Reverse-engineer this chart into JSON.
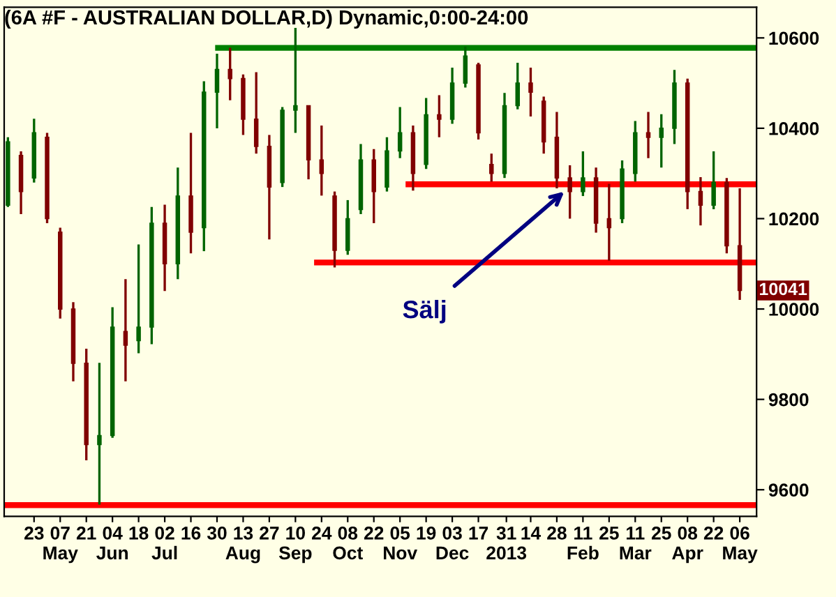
{
  "chart_data": {
    "type": "candlestick",
    "title": "(6A #F - AUSTRALIAN DOLLAR,D) Dynamic,0:00-24:00",
    "x": [
      "2012-04-09",
      "2012-04-16",
      "2012-04-23",
      "2012-04-30",
      "2012-05-07",
      "2012-05-14",
      "2012-05-21",
      "2012-05-28",
      "2012-06-04",
      "2012-06-11",
      "2012-06-18",
      "2012-06-25",
      "2012-07-02",
      "2012-07-09",
      "2012-07-16",
      "2012-07-23",
      "2012-07-30",
      "2012-08-06",
      "2012-08-13",
      "2012-08-20",
      "2012-08-27",
      "2012-09-03",
      "2012-09-10",
      "2012-09-17",
      "2012-09-24",
      "2012-10-01",
      "2012-10-08",
      "2012-10-15",
      "2012-10-22",
      "2012-10-29",
      "2012-11-05",
      "2012-11-12",
      "2012-11-19",
      "2012-11-26",
      "2012-12-03",
      "2012-12-10",
      "2012-12-17",
      "2012-12-24",
      "2012-12-31",
      "2013-01-07",
      "2013-01-14",
      "2013-01-21",
      "2013-01-28",
      "2013-02-04",
      "2013-02-11",
      "2013-02-18",
      "2013-02-25",
      "2013-03-04",
      "2013-03-11",
      "2013-03-18",
      "2013-03-25",
      "2013-04-01",
      "2013-04-08",
      "2013-04-15",
      "2013-04-22",
      "2013-04-29",
      "2013-05-06"
    ],
    "ohlc": [
      [
        10230,
        10380,
        10226,
        10370
      ],
      [
        10340,
        10349,
        10210,
        10260
      ],
      [
        10290,
        10421,
        10280,
        10390
      ],
      [
        10380,
        10390,
        10190,
        10200
      ],
      [
        10170,
        10180,
        9979,
        10000
      ],
      [
        10000,
        10015,
        9840,
        9880
      ],
      [
        9880,
        9912,
        9665,
        9700
      ],
      [
        9700,
        9881,
        9567,
        9720
      ],
      [
        9720,
        10004,
        9715,
        9960
      ],
      [
        9950,
        10066,
        9840,
        9920
      ],
      [
        9930,
        10143,
        9902,
        9960
      ],
      [
        9960,
        10226,
        9922,
        10190
      ],
      [
        10190,
        10231,
        10040,
        10100
      ],
      [
        10100,
        10313,
        10066,
        10250
      ],
      [
        10250,
        10390,
        10123,
        10170
      ],
      [
        10180,
        10504,
        10128,
        10480
      ],
      [
        10480,
        10565,
        10400,
        10530
      ],
      [
        10530,
        10578,
        10462,
        10510
      ],
      [
        10510,
        10519,
        10385,
        10420
      ],
      [
        10420,
        10524,
        10344,
        10360
      ],
      [
        10360,
        10385,
        10154,
        10270
      ],
      [
        10280,
        10447,
        10270,
        10440
      ],
      [
        10440,
        10622,
        10390,
        10450
      ],
      [
        10450,
        10450,
        10287,
        10330
      ],
      [
        10330,
        10406,
        10251,
        10300
      ],
      [
        10250,
        10260,
        10092,
        10130
      ],
      [
        10130,
        10241,
        10120,
        10200
      ],
      [
        10220,
        10365,
        10210,
        10330
      ],
      [
        10330,
        10354,
        10190,
        10260
      ],
      [
        10270,
        10380,
        10260,
        10350
      ],
      [
        10350,
        10447,
        10334,
        10390
      ],
      [
        10390,
        10406,
        10262,
        10300
      ],
      [
        10320,
        10467,
        10310,
        10430
      ],
      [
        10430,
        10473,
        10380,
        10420
      ],
      [
        10420,
        10534,
        10410,
        10500
      ],
      [
        10500,
        10581,
        10490,
        10560
      ],
      [
        10540,
        10545,
        10375,
        10390
      ],
      [
        10320,
        10344,
        10282,
        10300
      ],
      [
        10300,
        10478,
        10290,
        10450
      ],
      [
        10450,
        10545,
        10442,
        10500
      ],
      [
        10500,
        10534,
        10426,
        10480
      ],
      [
        10460,
        10470,
        10344,
        10370
      ],
      [
        10380,
        10436,
        10267,
        10290
      ],
      [
        10290,
        10318,
        10200,
        10260
      ],
      [
        10260,
        10349,
        10250,
        10290
      ],
      [
        10290,
        10313,
        10169,
        10190
      ],
      [
        10200,
        10277,
        10107,
        10180
      ],
      [
        10200,
        10329,
        10190,
        10310
      ],
      [
        10300,
        10416,
        10282,
        10390
      ],
      [
        10390,
        10436,
        10334,
        10380
      ],
      [
        10380,
        10431,
        10313,
        10400
      ],
      [
        10400,
        10529,
        10365,
        10500
      ],
      [
        10500,
        10510,
        10221,
        10260
      ],
      [
        10260,
        10292,
        10185,
        10230
      ],
      [
        10230,
        10349,
        10221,
        10280
      ],
      [
        10280,
        10290,
        10123,
        10140
      ],
      [
        10140,
        10267,
        10020,
        10041
      ]
    ],
    "colors": [
      "#006400",
      "#800000",
      "#006400",
      "#800000",
      "#800000",
      "#800000",
      "#800000",
      "#006400",
      "#006400",
      "#800000",
      "#006400",
      "#006400",
      "#800000",
      "#006400",
      "#800000",
      "#006400",
      "#006400",
      "#800000",
      "#800000",
      "#800000",
      "#800000",
      "#006400",
      "#006400",
      "#800000",
      "#800000",
      "#800000",
      "#006400",
      "#006400",
      "#800000",
      "#006400",
      "#006400",
      "#800000",
      "#006400",
      "#800000",
      "#006400",
      "#006400",
      "#800000",
      "#800000",
      "#006400",
      "#006400",
      "#800000",
      "#800000",
      "#800000",
      "#800000",
      "#006400",
      "#800000",
      "#800000",
      "#006400",
      "#006400",
      "#800000",
      "#006400",
      "#006400",
      "#800000",
      "#800000",
      "#006400",
      "#800000",
      "#800000"
    ],
    "series": [
      {
        "type": "line",
        "color": "#008000",
        "x": [
          "2012-07-29",
          "2013-05-15"
        ],
        "values": [
          10578,
          10578
        ]
      },
      {
        "type": "line",
        "color": "#ff0000",
        "x": [
          "2012-11-08",
          "2013-05-15"
        ],
        "values": [
          10276,
          10276
        ]
      },
      {
        "type": "line",
        "color": "#ff0000",
        "x": [
          "2012-09-20",
          "2013-05-15"
        ],
        "values": [
          10103,
          10103
        ]
      },
      {
        "type": "line",
        "color": "#ff0000",
        "x": [
          "2012-04-07",
          "2013-05-15"
        ],
        "values": [
          9566,
          9566
        ]
      }
    ],
    "annotations": [
      {
        "text": "Sälj",
        "x": "2013-02-01",
        "y": 10260
      },
      {
        "text": "10041",
        "y": 10041
      }
    ],
    "xlim": [
      "2012-04-07",
      "2013-05-15"
    ],
    "xticks": [
      {
        "value": "2012-04-23",
        "label": "23"
      },
      {
        "value": "2012-05-07",
        "label": "07\nMay"
      },
      {
        "value": "2012-05-21",
        "label": "21"
      },
      {
        "value": "2012-06-04",
        "label": "04\nJun"
      },
      {
        "value": "2012-06-18",
        "label": "18"
      },
      {
        "value": "2012-07-02",
        "label": "02\nJul"
      },
      {
        "value": "2012-07-16",
        "label": "16"
      },
      {
        "value": "2012-07-30",
        "label": "30"
      },
      {
        "value": "2012-08-13",
        "label": "13\nAug"
      },
      {
        "value": "2012-08-27",
        "label": "27"
      },
      {
        "value": "2012-09-10",
        "label": "10\nSep"
      },
      {
        "value": "2012-09-24",
        "label": "24"
      },
      {
        "value": "2012-10-08",
        "label": "08\nOct"
      },
      {
        "value": "2012-10-22",
        "label": "22"
      },
      {
        "value": "2012-11-05",
        "label": "05\nNov"
      },
      {
        "value": "2012-11-19",
        "label": "19"
      },
      {
        "value": "2012-12-03",
        "label": "03\nDec"
      },
      {
        "value": "2012-12-17",
        "label": "17"
      },
      {
        "value": "2013-01-01",
        "label": "31\n2013"
      },
      {
        "value": "2013-01-14",
        "label": "14"
      },
      {
        "value": "2013-01-28",
        "label": "28"
      },
      {
        "value": "2013-02-11",
        "label": "11\nFeb"
      },
      {
        "value": "2013-02-25",
        "label": "25"
      },
      {
        "value": "2013-03-11",
        "label": "11\nMar"
      },
      {
        "value": "2013-03-25",
        "label": "25"
      },
      {
        "value": "2013-04-08",
        "label": "08\nApr"
      },
      {
        "value": "2013-04-22",
        "label": "22"
      },
      {
        "value": "2013-05-06",
        "label": "06\nMay"
      }
    ],
    "ylim": [
      9541,
      10668
    ],
    "yticks": [
      9600,
      9800,
      10000,
      10200,
      10400,
      10600
    ],
    "grid": false,
    "legend": false
  }
}
